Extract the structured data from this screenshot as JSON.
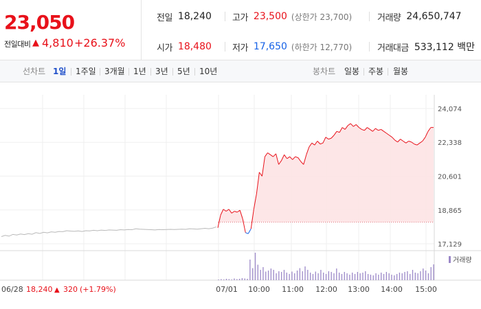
{
  "summary": {
    "price": "23,050",
    "change_label": "전일대비",
    "change_arrow": "▲",
    "change_value": "4,810",
    "change_pct": "+26.37%"
  },
  "stats": {
    "prev_close": {
      "label": "전일",
      "value": "18,240"
    },
    "high": {
      "label": "고가",
      "value": "23,500",
      "sub": "(상한가 23,700)"
    },
    "volume": {
      "label": "거래량",
      "value": "24,650,747"
    },
    "open": {
      "label": "시가",
      "value": "18,480"
    },
    "low": {
      "label": "저가",
      "value": "17,650",
      "sub": "(하한가 12,770)"
    },
    "amount": {
      "label": "거래대금",
      "value": "533,112 백만"
    }
  },
  "period_bar": {
    "line_label": "선차트",
    "periods": [
      "1일",
      "1주일",
      "3개월",
      "1년",
      "3년",
      "5년",
      "10년"
    ],
    "active_period": "1일",
    "candle_label": "봉차트",
    "candle_periods": [
      "일봉",
      "주봉",
      "월봉"
    ]
  },
  "colors": {
    "up": "#e8111a",
    "down": "#1561e6",
    "prev_line": "#b8b8b8",
    "fill": "#fde3e4",
    "volume": "#9b88c8"
  },
  "chart_data": {
    "type": "line",
    "y_ticks": [
      "24,074",
      "22,338",
      "20,601",
      "18,865",
      "17,129"
    ],
    "ylim": [
      17129,
      24074
    ],
    "x_ticks": [
      "07/01",
      "10:00",
      "11:00",
      "12:00",
      "13:00",
      "14:00",
      "15:00"
    ],
    "base_price": 18240,
    "prev_day": {
      "label": "06/28",
      "close": "18,240",
      "arrow": "▲",
      "change": "320",
      "pct": "(+1.79%)",
      "values": [
        17500,
        17560,
        17520,
        17610,
        17580,
        17630,
        17600,
        17650,
        17620,
        17700,
        17660,
        17720,
        17690,
        17740,
        17720,
        17760,
        17750,
        17800,
        17780,
        17770,
        17790,
        17760,
        17800,
        17790,
        17820,
        17800,
        17830,
        17810,
        17840,
        17830,
        17820,
        17850,
        17840,
        17860,
        17850,
        17900,
        17880,
        17870,
        17860,
        17850,
        17840,
        17860,
        17850,
        17860,
        17870,
        17860,
        17870,
        17880,
        17870,
        17900,
        17890,
        17880,
        17900,
        17920,
        17900,
        17930,
        18000
      ]
    },
    "today": {
      "values": [
        17950,
        18600,
        18900,
        18800,
        18900,
        18700,
        18800,
        18750,
        18850,
        18400,
        17700,
        17650,
        17900,
        18900,
        19700,
        20800,
        20600,
        21600,
        21800,
        21700,
        21600,
        21750,
        21200,
        21400,
        21700,
        21500,
        21600,
        21450,
        21600,
        21550,
        21350,
        21200,
        21700,
        22100,
        22300,
        22200,
        22400,
        22250,
        22300,
        22600,
        22500,
        22550,
        22700,
        22900,
        22850,
        23100,
        23000,
        23200,
        23300,
        23150,
        23250,
        23100,
        23000,
        22950,
        23100,
        23000,
        22900,
        23050,
        22950,
        23000,
        22900,
        22800,
        22700,
        22600,
        22450,
        22350,
        22500,
        22400,
        22300,
        22400,
        22350,
        22250,
        22200,
        22300,
        22400,
        22600,
        22900,
        23100,
        23100
      ]
    },
    "volume_legend": "거래량",
    "volume": [
      2,
      3,
      2,
      4,
      3,
      2,
      5,
      3,
      4,
      6,
      5,
      4,
      60,
      35,
      80,
      45,
      30,
      38,
      25,
      28,
      34,
      30,
      20,
      26,
      24,
      30,
      22,
      18,
      25,
      20,
      28,
      35,
      26,
      40,
      30,
      22,
      18,
      25,
      20,
      30,
      22,
      18,
      26,
      24,
      20,
      34,
      22,
      18,
      24,
      20,
      16,
      22,
      18,
      24,
      20,
      22,
      26,
      18,
      16,
      14,
      20,
      16,
      22,
      18,
      24,
      20,
      16,
      14,
      18,
      22,
      20,
      24,
      26,
      18,
      30,
      22,
      20,
      26,
      34,
      28,
      20,
      38,
      46
    ]
  }
}
